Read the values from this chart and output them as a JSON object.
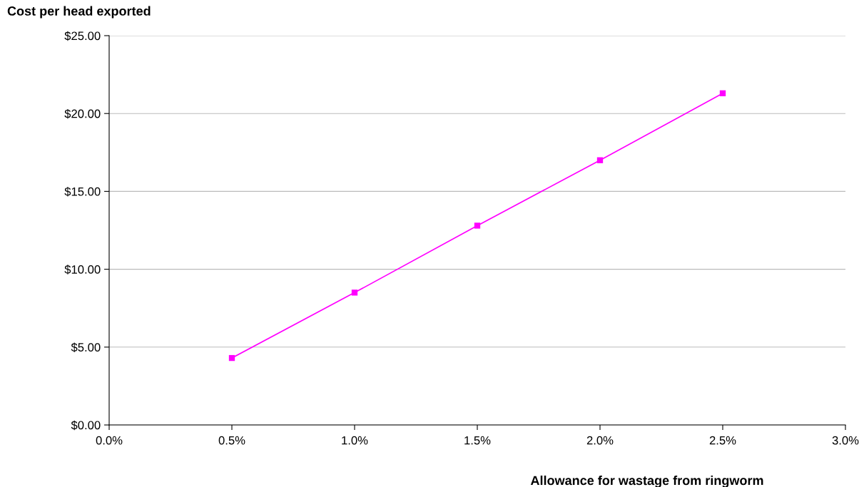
{
  "chart_data": {
    "type": "line",
    "xlabel": "Allowance for wastage from ringworm",
    "ylabel": "Cost per head exported",
    "x": [
      0.5,
      1.0,
      1.5,
      2.0,
      2.5
    ],
    "series": [
      {
        "color": "#ff00ff",
        "values": [
          4.3,
          8.5,
          12.8,
          17.0,
          21.3
        ]
      }
    ],
    "xlim": [
      0,
      3
    ],
    "xticks": [
      {
        "value": 0,
        "label": "0.0%"
      },
      {
        "value": 0.5,
        "label": "0.5%"
      },
      {
        "value": 1,
        "label": "1.0%"
      },
      {
        "value": 1.5,
        "label": "1.5%"
      },
      {
        "value": 2,
        "label": "2.0%"
      },
      {
        "value": 2.5,
        "label": "2.5%"
      },
      {
        "value": 3,
        "label": "3.0%"
      }
    ],
    "ylim": [
      0,
      25
    ],
    "yticks": [
      {
        "value": 0,
        "label": "$0.00"
      },
      {
        "value": 5,
        "label": "$5.00"
      },
      {
        "value": 10,
        "label": "$10.00"
      },
      {
        "value": 15,
        "label": "$15.00"
      },
      {
        "value": 20,
        "label": "$20.00"
      },
      {
        "value": 25,
        "label": "$25.00"
      }
    ],
    "grid": "y",
    "marker": "square",
    "line_style": "solid",
    "legend": false
  }
}
